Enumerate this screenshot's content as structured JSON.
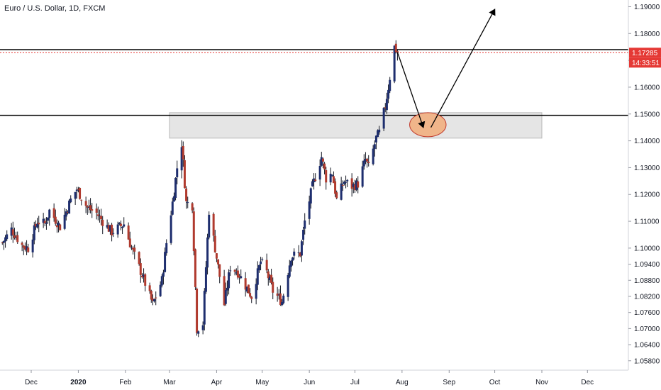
{
  "header": {
    "title": "Euro / U.S. Dollar, 1D, FXCM"
  },
  "colors": {
    "up": "#1e2e6e",
    "down": "#b03a2e",
    "wick": "#131722",
    "price_line": "#e53935",
    "zone": "#dcdcdc",
    "ellipse_fill": "#f0b58a",
    "ellipse_stroke": "#c0392b",
    "accent": "#e53935"
  },
  "price_label": {
    "value": "1.17285",
    "countdown": "14:33:51"
  },
  "chart_data": {
    "type": "candlestick",
    "title": "Euro / U.S. Dollar, 1D, FXCM",
    "ylim": [
      1.0545,
      1.1925
    ],
    "x_ticks": [
      {
        "label": "Dec",
        "date": "2019-12-01"
      },
      {
        "label": "2020",
        "date": "2020-01-01",
        "bold": true
      },
      {
        "label": "Feb",
        "date": "2020-02-01"
      },
      {
        "label": "Mar",
        "date": "2020-03-01"
      },
      {
        "label": "Apr",
        "date": "2020-04-01"
      },
      {
        "label": "May",
        "date": "2020-05-01"
      },
      {
        "label": "Jun",
        "date": "2020-06-01"
      },
      {
        "label": "Jul",
        "date": "2020-07-01"
      },
      {
        "label": "Aug",
        "date": "2020-08-01"
      },
      {
        "label": "Sep",
        "date": "2020-09-01"
      },
      {
        "label": "Oct",
        "date": "2020-10-01"
      },
      {
        "label": "Nov",
        "date": "2020-11-01"
      },
      {
        "label": "Dec",
        "date": "2020-12-01"
      }
    ],
    "y_ticks": [
      "1.19000",
      "1.18000",
      "1.17000",
      "1.16000",
      "1.15000",
      "1.14000",
      "1.13000",
      "1.12000",
      "1.11000",
      "1.10000",
      "1.09400",
      "1.08800",
      "1.08200",
      "1.07600",
      "1.07000",
      "1.06400",
      "1.05800"
    ],
    "close_path": [
      [
        "2019-11-12",
        1.102
      ],
      [
        "2019-11-18",
        1.107
      ],
      [
        "2019-11-25",
        1.101
      ],
      [
        "2019-11-29",
        1.1
      ],
      [
        "2019-12-05",
        1.11
      ],
      [
        "2019-12-10",
        1.109
      ],
      [
        "2019-12-13",
        1.114
      ],
      [
        "2019-12-20",
        1.108
      ],
      [
        "2019-12-27",
        1.118
      ],
      [
        "2019-12-31",
        1.122
      ],
      [
        "2020-01-07",
        1.115
      ],
      [
        "2020-01-13",
        1.113
      ],
      [
        "2020-01-17",
        1.11
      ],
      [
        "2020-01-23",
        1.106
      ],
      [
        "2020-01-31",
        1.109
      ],
      [
        "2020-02-05",
        1.1
      ],
      [
        "2020-02-12",
        1.09
      ],
      [
        "2020-02-19",
        1.079
      ],
      [
        "2020-02-25",
        1.088
      ],
      [
        "2020-02-28",
        1.102
      ],
      [
        "2020-03-03",
        1.117
      ],
      [
        "2020-03-06",
        1.13
      ],
      [
        "2020-03-09",
        1.139
      ],
      [
        "2020-03-12",
        1.117
      ],
      [
        "2020-03-16",
        1.116
      ],
      [
        "2020-03-19",
        1.07
      ],
      [
        "2020-03-23",
        1.072
      ],
      [
        "2020-03-27",
        1.114
      ],
      [
        "2020-03-31",
        1.1
      ],
      [
        "2020-04-06",
        1.079
      ],
      [
        "2020-04-10",
        1.093
      ],
      [
        "2020-04-15",
        1.091
      ],
      [
        "2020-04-20",
        1.086
      ],
      [
        "2020-04-24",
        1.082
      ],
      [
        "2020-04-30",
        1.095
      ],
      [
        "2020-05-04",
        1.091
      ],
      [
        "2020-05-08",
        1.084
      ],
      [
        "2020-05-14",
        1.08
      ],
      [
        "2020-05-20",
        1.097
      ],
      [
        "2020-05-26",
        1.098
      ],
      [
        "2020-05-29",
        1.11
      ],
      [
        "2020-06-03",
        1.123
      ],
      [
        "2020-06-09",
        1.134
      ],
      [
        "2020-06-12",
        1.126
      ],
      [
        "2020-06-16",
        1.128
      ],
      [
        "2020-06-19",
        1.118
      ],
      [
        "2020-06-24",
        1.125
      ],
      [
        "2020-06-29",
        1.123
      ],
      [
        "2020-07-03",
        1.124
      ],
      [
        "2020-07-08",
        1.133
      ],
      [
        "2020-07-10",
        1.13
      ],
      [
        "2020-07-15",
        1.141
      ],
      [
        "2020-07-17",
        1.143
      ],
      [
        "2020-07-21",
        1.153
      ],
      [
        "2020-07-23",
        1.16
      ],
      [
        "2020-07-27",
        1.175
      ],
      [
        "2020-07-29",
        1.173
      ]
    ],
    "horizontal_lines": [
      {
        "value": 1.174,
        "color": "#000000"
      },
      {
        "value": 1.1495,
        "color": "#000000"
      },
      {
        "value": 1.17285,
        "color": "#e53935",
        "dashed": true
      }
    ],
    "zone": {
      "x_from": "2020-03-01",
      "x_to": "2020-11-01",
      "y_from": 1.141,
      "y_to": 1.1505
    },
    "arrows": [
      {
        "from": [
          "2020-07-29",
          1.173
        ],
        "to": [
          "2020-08-15",
          1.145
        ]
      },
      {
        "from": [
          "2020-08-20",
          1.145
        ],
        "to": [
          "2020-10-01",
          1.189
        ]
      }
    ],
    "ellipse": {
      "center": [
        "2020-08-18",
        1.146
      ],
      "r_days": 12,
      "r_value": 0.0045
    }
  }
}
